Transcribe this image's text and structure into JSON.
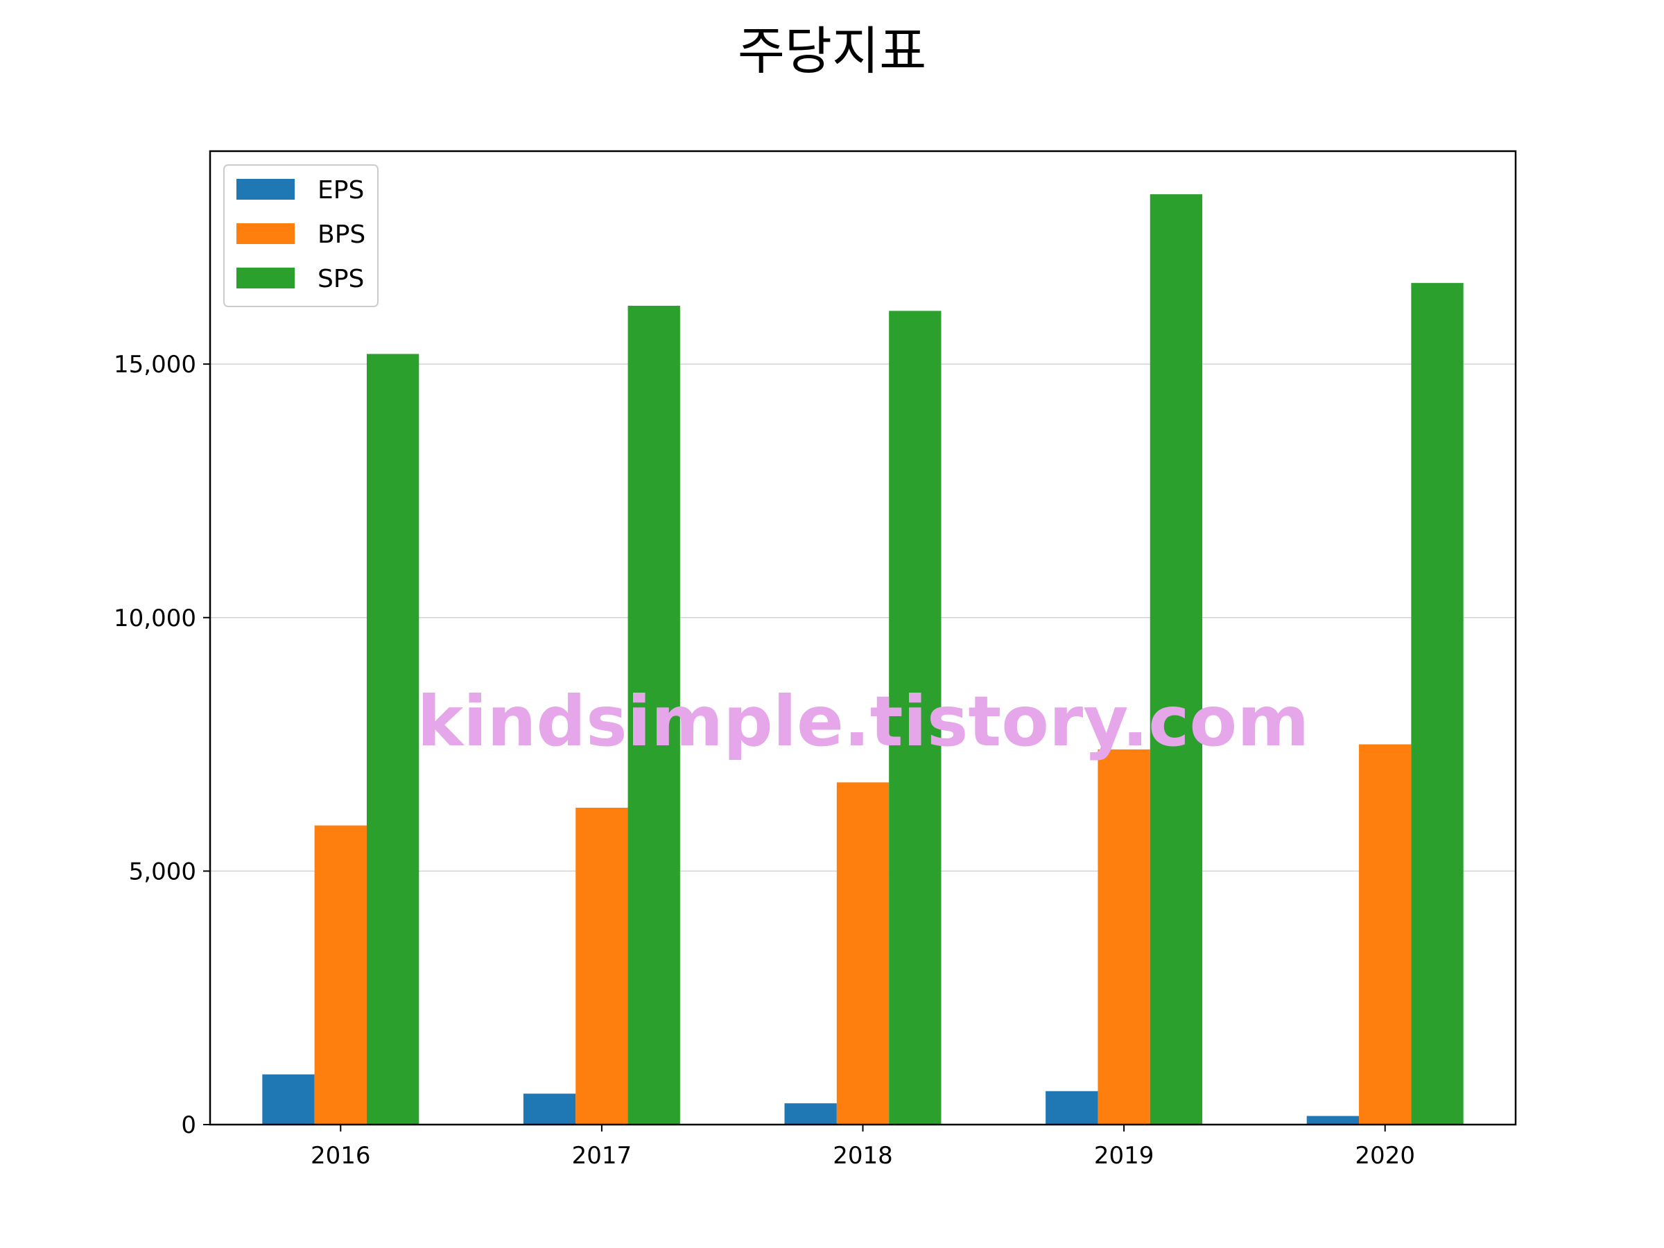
{
  "chart_data": {
    "type": "bar",
    "title": "주당지표",
    "xlabel": "",
    "ylabel": "",
    "categories": [
      "2016",
      "2017",
      "2018",
      "2019",
      "2020"
    ],
    "series": [
      {
        "name": "EPS",
        "color": "#1f77b4",
        "values": [
          990,
          610,
          420,
          660,
          170
        ]
      },
      {
        "name": "BPS",
        "color": "#ff7f0e",
        "values": [
          5900,
          6250,
          6750,
          7400,
          7500
        ]
      },
      {
        "name": "SPS",
        "color": "#2ca02c",
        "values": [
          15200,
          16150,
          16050,
          18350,
          16600
        ]
      }
    ],
    "ylim": [
      0,
      19200
    ],
    "yticks": [
      0,
      5000,
      10000,
      15000
    ],
    "ytick_labels": [
      "0",
      "5,000",
      "10,000",
      "15,000"
    ],
    "grid": {
      "y": true,
      "x": false
    },
    "legend_position": "top-left",
    "watermark": "kindsimple.tistory.com",
    "watermark_color": "#e6a6ea"
  }
}
